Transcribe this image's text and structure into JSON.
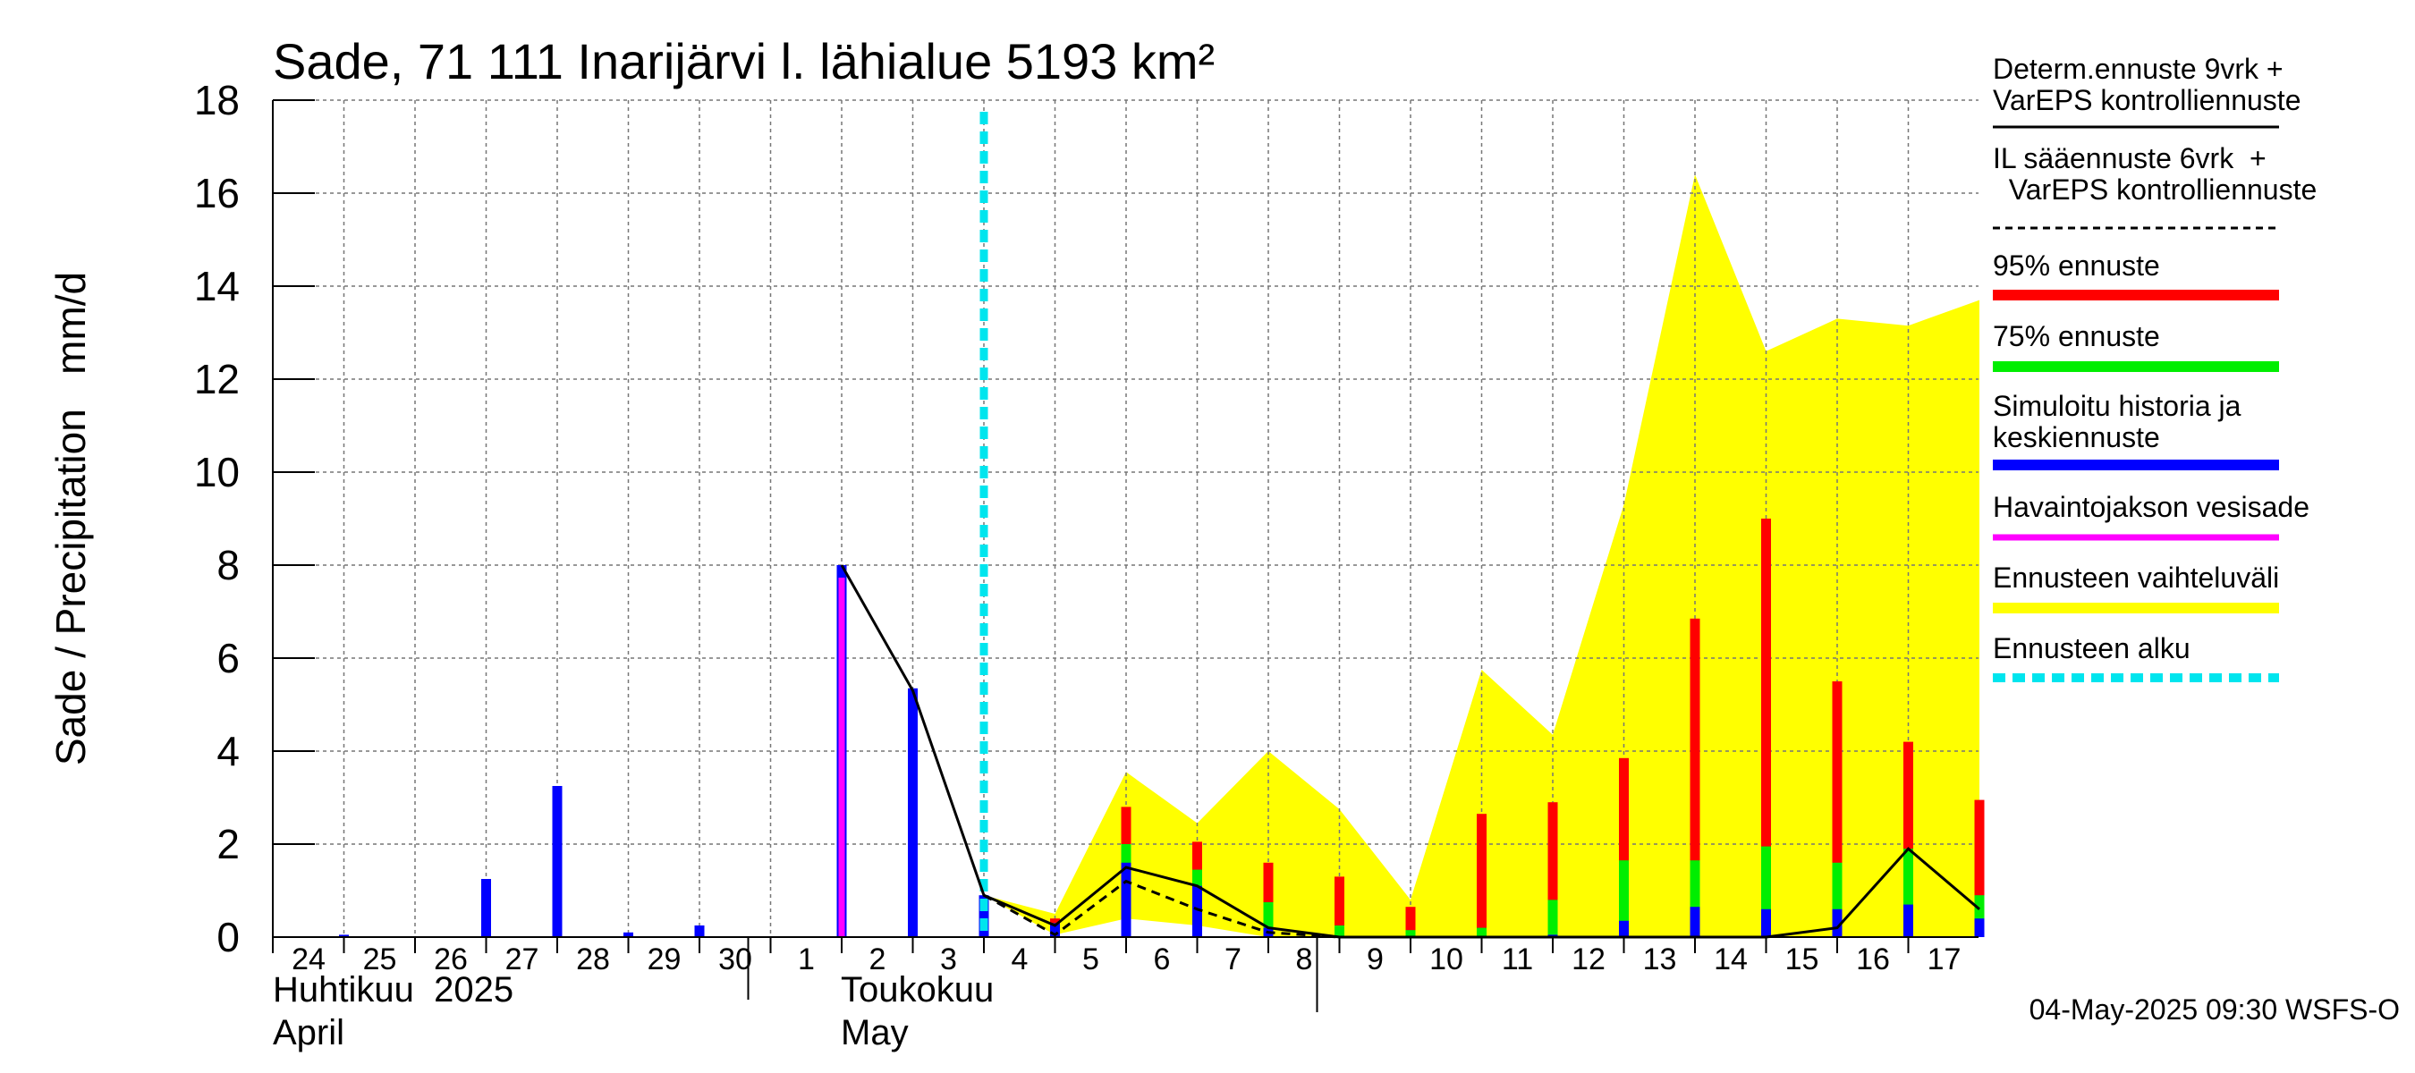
{
  "chart_data": {
    "type": "bar",
    "title": "Sade, 71 111 Inarijärvi l. lähialue 5193 km²",
    "ylabel": "Sade / Precipitation   mm/d",
    "ylim": [
      0,
      18
    ],
    "yticks": [
      0,
      2,
      4,
      6,
      8,
      10,
      12,
      14,
      16,
      18
    ],
    "x_day_labels": [
      "24",
      "25",
      "26",
      "27",
      "28",
      "29",
      "30",
      "1",
      "2",
      "3",
      "4",
      "5",
      "6",
      "7",
      "8",
      "9",
      "10",
      "11",
      "12",
      "13",
      "14",
      "15",
      "16",
      "17"
    ],
    "month_labels": {
      "april_fi": "Huhtikuu  2025",
      "april_en": "April",
      "may_fi": "Toukokuu",
      "may_en": "May"
    },
    "forecast_start_day": 4,
    "history_bars": [
      {
        "day": 25,
        "value": 0.05
      },
      {
        "day": 27,
        "value": 1.25
      },
      {
        "day": 28,
        "value": 3.25
      },
      {
        "day": 29,
        "value": 0.1
      },
      {
        "day": 30,
        "value": 0.25
      },
      {
        "day": 3,
        "value": 5.35
      },
      {
        "day": 4,
        "value": 0.9
      }
    ],
    "observed_bars": [
      {
        "day": 2,
        "value": 8.0
      }
    ],
    "forecast_bars": [
      {
        "day": 5,
        "p95": 0.4,
        "p75": 0.3,
        "median": 0.3
      },
      {
        "day": 6,
        "p95": 2.8,
        "p75": 2.0,
        "median": 1.6
      },
      {
        "day": 7,
        "p95": 2.05,
        "p75": 1.45,
        "median": 1.1
      },
      {
        "day": 8,
        "p95": 1.6,
        "p75": 0.75,
        "median": 0.2
      },
      {
        "day": 9,
        "p95": 1.3,
        "p75": 0.25,
        "median": 0.0
      },
      {
        "day": 10,
        "p95": 0.65,
        "p75": 0.15,
        "median": 0.0
      },
      {
        "day": 11,
        "p95": 2.65,
        "p75": 0.2,
        "median": 0.0
      },
      {
        "day": 12,
        "p95": 2.9,
        "p75": 0.8,
        "median": 0.05
      },
      {
        "day": 13,
        "p95": 3.85,
        "p75": 1.65,
        "median": 0.35
      },
      {
        "day": 14,
        "p95": 6.85,
        "p75": 1.65,
        "median": 0.65
      },
      {
        "day": 15,
        "p95": 9.0,
        "p75": 1.95,
        "median": 0.6
      },
      {
        "day": 16,
        "p95": 5.5,
        "p75": 1.6,
        "median": 0.6
      },
      {
        "day": 17,
        "p95": 4.2,
        "p75": 1.9,
        "median": 0.7
      },
      {
        "day": 18,
        "p95": 2.95,
        "p75": 0.9,
        "median": 0.4
      }
    ],
    "range_band": [
      {
        "day": 4.0,
        "lo": 0.9,
        "hi": 0.9
      },
      {
        "day": 5.0,
        "lo": 0.05,
        "hi": 0.5
      },
      {
        "day": 6.0,
        "lo": 0.4,
        "hi": 3.55
      },
      {
        "day": 7.0,
        "lo": 0.25,
        "hi": 2.45
      },
      {
        "day": 8.0,
        "lo": 0.0,
        "hi": 4.0
      },
      {
        "day": 9.0,
        "lo": 0.0,
        "hi": 2.75
      },
      {
        "day": 10.0,
        "lo": 0.0,
        "hi": 0.8
      },
      {
        "day": 11.0,
        "lo": 0.0,
        "hi": 5.75
      },
      {
        "day": 12.0,
        "lo": 0.0,
        "hi": 4.35
      },
      {
        "day": 13.0,
        "lo": 0.0,
        "hi": 9.3
      },
      {
        "day": 14.0,
        "lo": 0.0,
        "hi": 16.4
      },
      {
        "day": 15.0,
        "lo": 0.0,
        "hi": 12.6
      },
      {
        "day": 16.0,
        "lo": 0.0,
        "hi": 13.3
      },
      {
        "day": 17.0,
        "lo": 0.0,
        "hi": 13.15
      },
      {
        "day": 18.0,
        "lo": 0.0,
        "hi": 13.7
      }
    ],
    "deterministic_line": [
      {
        "day": 2,
        "value": 8.0
      },
      {
        "day": 3,
        "value": 5.3
      },
      {
        "day": 4,
        "value": 0.9
      },
      {
        "day": 5,
        "value": 0.25
      },
      {
        "day": 6,
        "value": 1.5
      },
      {
        "day": 7,
        "value": 1.1
      },
      {
        "day": 8,
        "value": 0.2
      },
      {
        "day": 9,
        "value": 0.0
      },
      {
        "day": 10,
        "value": 0.0
      },
      {
        "day": 11,
        "value": 0.0
      },
      {
        "day": 12,
        "value": 0.0
      },
      {
        "day": 13,
        "value": 0.0
      },
      {
        "day": 14,
        "value": 0.0
      },
      {
        "day": 15,
        "value": 0.0
      },
      {
        "day": 16,
        "value": 0.2
      },
      {
        "day": 17,
        "value": 1.9
      },
      {
        "day": 18,
        "value": 0.6
      }
    ],
    "il_line": [
      {
        "day": 4,
        "value": 0.9
      },
      {
        "day": 5,
        "value": 0.05
      },
      {
        "day": 6,
        "value": 1.2
      },
      {
        "day": 7,
        "value": 0.6
      },
      {
        "day": 8,
        "value": 0.1
      },
      {
        "day": 9,
        "value": 0.0
      },
      {
        "day": 10,
        "value": 0.0
      }
    ],
    "timestamp": "04-May-2025 09:30 WSFS-O",
    "colors": {
      "history": "#0000ff",
      "observed": "#ff00ff",
      "p95": "#ff0000",
      "p75": "#00ee00",
      "median": "#0000ff",
      "band": "#ffff00",
      "forecast_start": "#00e5ee",
      "line": "#000000"
    },
    "legend": [
      {
        "label": "Determ.ennuste 9vrk +\nVarEPS kontrolliennuste",
        "style": "solid-thin",
        "color": "#000000"
      },
      {
        "label": "IL sääennuste 6vrk  +\n  VarEPS kontrolliennuste",
        "style": "dashed-thin",
        "color": "#000000"
      },
      {
        "label": "95% ennuste",
        "style": "thick",
        "color": "#ff0000"
      },
      {
        "label": "75% ennuste",
        "style": "thick",
        "color": "#00ee00"
      },
      {
        "label": "Simuloitu historia ja\nkeskiennuste",
        "style": "thick",
        "color": "#0000ff"
      },
      {
        "label": "Havaintojakson vesisade",
        "style": "medium",
        "color": "#ff00ff"
      },
      {
        "label": "Ennusteen vaihteluväli",
        "style": "thick",
        "color": "#ffff00"
      },
      {
        "label": "Ennusteen alku",
        "style": "dashed-thick",
        "color": "#00e5ee"
      }
    ]
  }
}
